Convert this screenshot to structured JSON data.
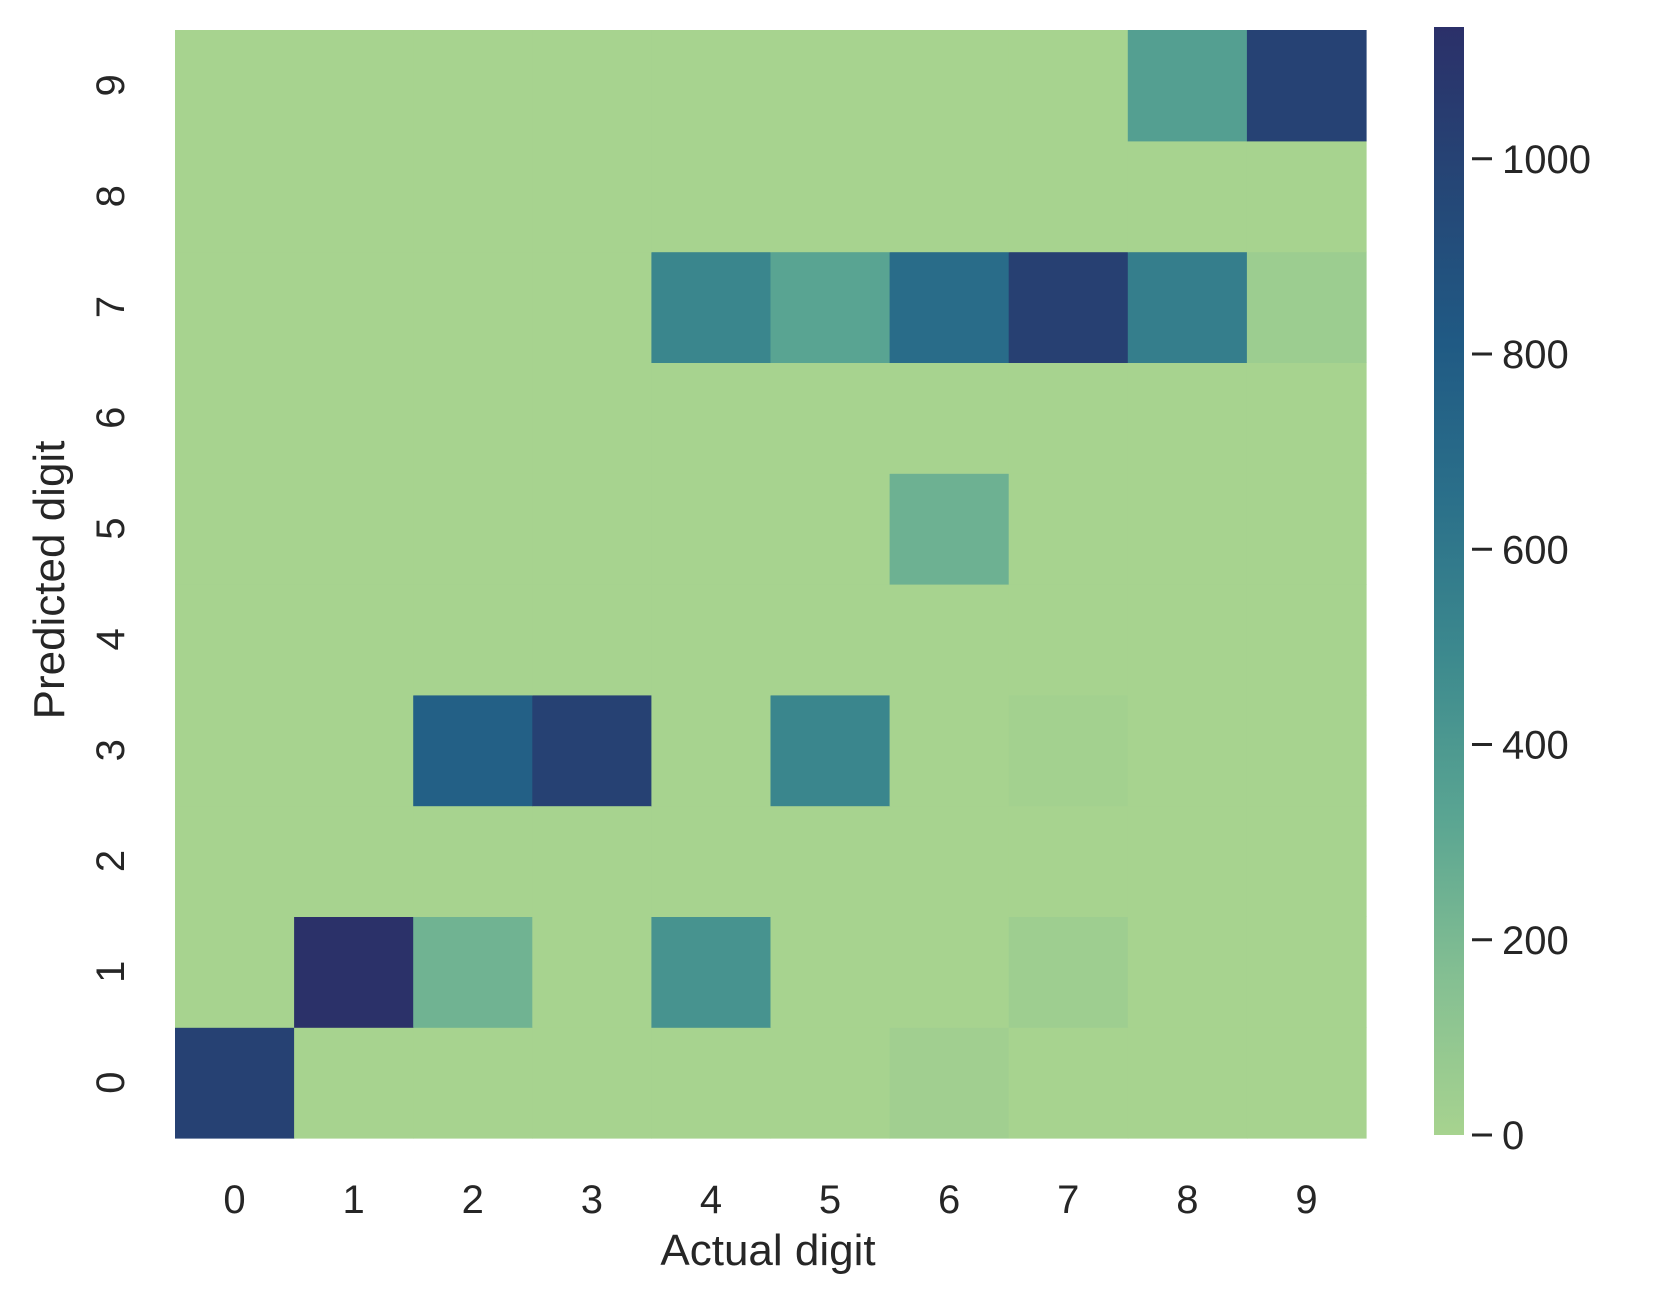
{
  "chart_data": {
    "type": "heatmap",
    "xlabel": "Actual digit",
    "ylabel": "Predicted digit",
    "x_categories": [
      "0",
      "1",
      "2",
      "3",
      "4",
      "5",
      "6",
      "7",
      "8",
      "9"
    ],
    "y_categories": [
      "0",
      "1",
      "2",
      "3",
      "4",
      "5",
      "6",
      "7",
      "8",
      "9"
    ],
    "y_order": "bottom-to-top",
    "rows": [
      {
        "predicted": "0",
        "values": [
          1010,
          0,
          0,
          0,
          0,
          0,
          30,
          0,
          0,
          0
        ]
      },
      {
        "predicted": "1",
        "values": [
          0,
          1130,
          240,
          0,
          430,
          0,
          0,
          40,
          0,
          0
        ]
      },
      {
        "predicted": "2",
        "values": [
          0,
          0,
          0,
          0,
          0,
          0,
          0,
          0,
          0,
          0
        ]
      },
      {
        "predicted": "3",
        "values": [
          0,
          0,
          770,
          1010,
          0,
          510,
          0,
          20,
          0,
          0
        ]
      },
      {
        "predicted": "4",
        "values": [
          0,
          0,
          0,
          0,
          0,
          0,
          0,
          0,
          0,
          0
        ]
      },
      {
        "predicted": "5",
        "values": [
          0,
          0,
          0,
          0,
          0,
          0,
          250,
          0,
          0,
          0
        ]
      },
      {
        "predicted": "6",
        "values": [
          0,
          0,
          0,
          0,
          0,
          0,
          0,
          0,
          0,
          0
        ]
      },
      {
        "predicted": "7",
        "values": [
          0,
          0,
          0,
          0,
          510,
          330,
          680,
          1020,
          560,
          50
        ]
      },
      {
        "predicted": "8",
        "values": [
          0,
          0,
          0,
          0,
          0,
          0,
          0,
          0,
          0,
          0
        ]
      },
      {
        "predicted": "9",
        "values": [
          0,
          0,
          0,
          0,
          0,
          0,
          0,
          0,
          360,
          1000
        ]
      }
    ],
    "colorbar": {
      "min": 0,
      "max": 1135,
      "ticks": [
        0,
        200,
        400,
        600,
        800,
        1000
      ],
      "tick_labels": [
        "0",
        "200",
        "400",
        "600",
        "800",
        "1000"
      ],
      "colors": [
        "#a7d38f",
        "#84bf92",
        "#5aa592",
        "#3d8a8e",
        "#2b708a",
        "#205a84",
        "#254676",
        "#2b3069"
      ]
    },
    "grid": false,
    "legend": "none"
  }
}
